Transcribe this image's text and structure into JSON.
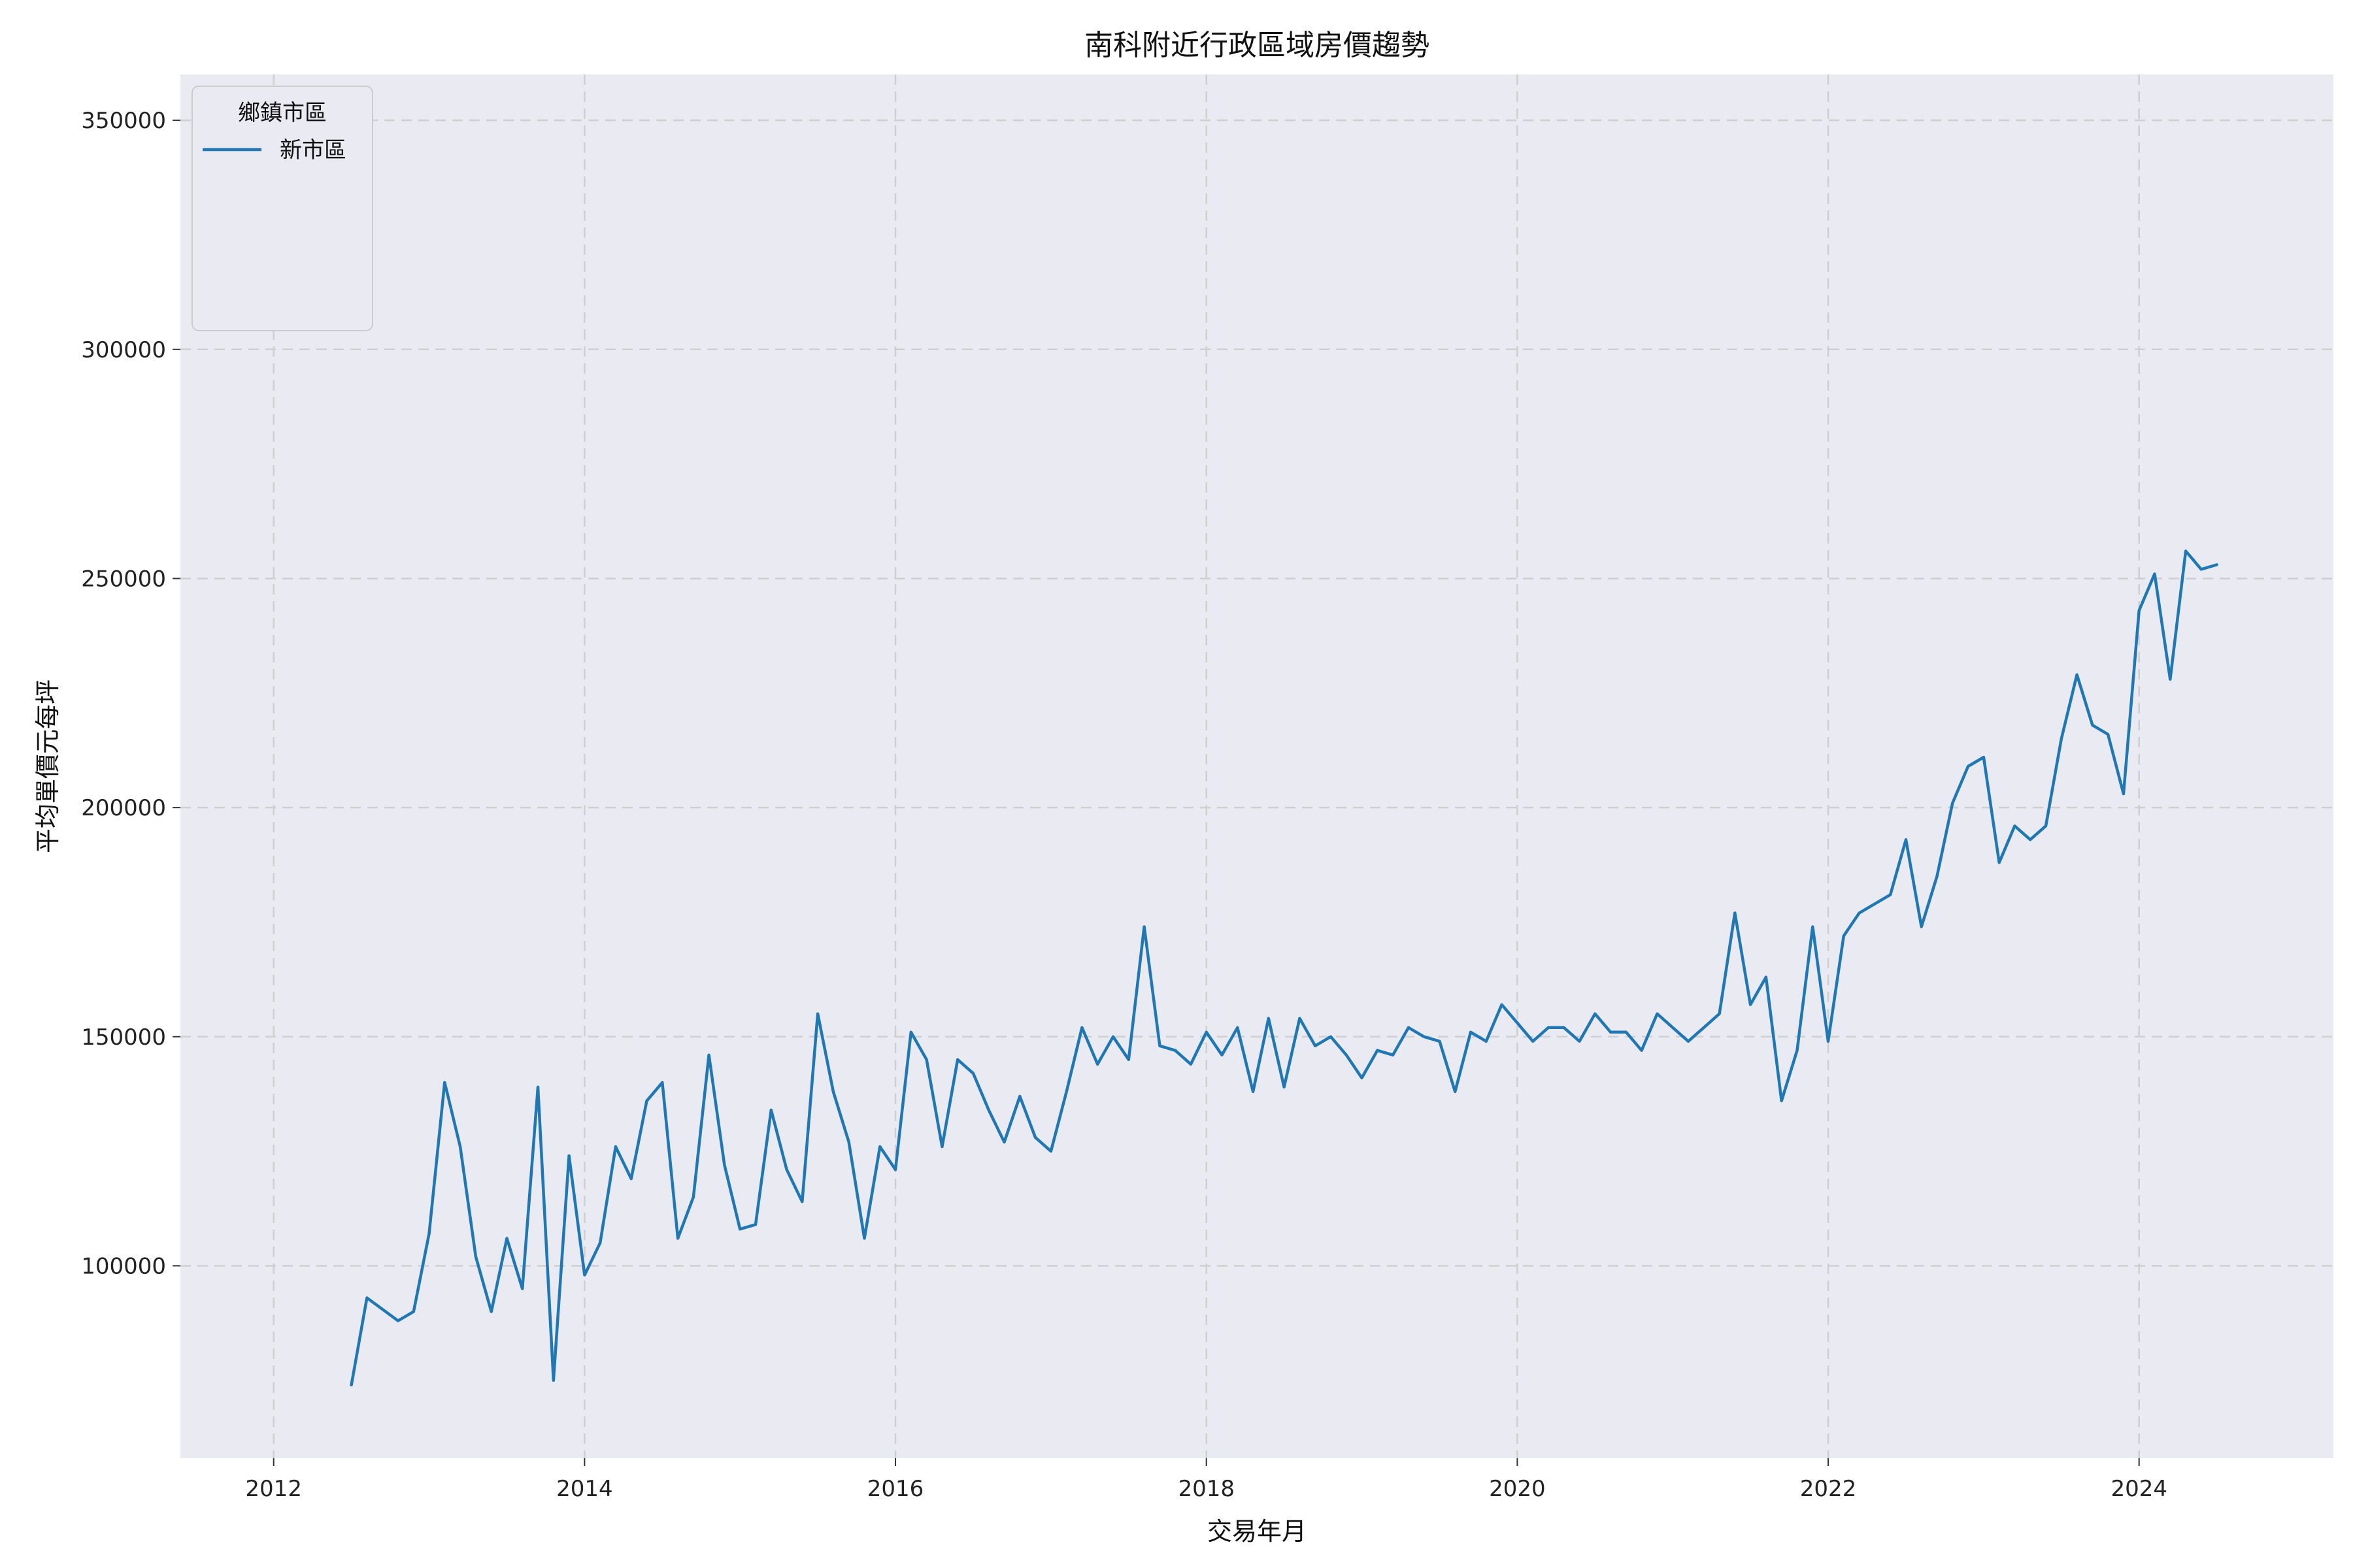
{
  "chart_data": {
    "type": "line",
    "title": "南科附近行政區域房價趨勢",
    "xlabel": "交易年月",
    "ylabel": "平均單價元每坪",
    "xlim": [
      2011.4,
      2025.25
    ],
    "ylim": [
      58000,
      360000
    ],
    "x_ticks": [
      2012,
      2014,
      2016,
      2018,
      2020,
      2022,
      2024
    ],
    "y_ticks": [
      100000,
      150000,
      200000,
      250000,
      300000,
      350000
    ],
    "grid": true,
    "legend": {
      "title": "鄉鎮市區",
      "placement": "top-left"
    },
    "background_color": "#eaeaf2",
    "series": [
      {
        "name": "新市區",
        "color": "#1f77b4",
        "width": 4.5,
        "points": [
          [
            2012.5,
            74000
          ],
          [
            2012.6,
            93000
          ],
          [
            2012.8,
            88000
          ],
          [
            2012.9,
            90000
          ],
          [
            2013.0,
            107000
          ],
          [
            2013.1,
            140000
          ],
          [
            2013.2,
            126000
          ],
          [
            2013.3,
            102000
          ],
          [
            2013.4,
            90000
          ],
          [
            2013.5,
            106000
          ],
          [
            2013.6,
            95000
          ],
          [
            2013.7,
            139000
          ],
          [
            2013.8,
            75000
          ],
          [
            2013.9,
            124000
          ],
          [
            2014.0,
            98000
          ],
          [
            2014.1,
            105000
          ],
          [
            2014.2,
            126000
          ],
          [
            2014.3,
            119000
          ],
          [
            2014.4,
            136000
          ],
          [
            2014.5,
            140000
          ],
          [
            2014.6,
            106000
          ],
          [
            2014.7,
            115000
          ],
          [
            2014.8,
            146000
          ],
          [
            2014.9,
            122000
          ],
          [
            2015.0,
            108000
          ],
          [
            2015.1,
            109000
          ],
          [
            2015.2,
            134000
          ],
          [
            2015.3,
            121000
          ],
          [
            2015.4,
            114000
          ],
          [
            2015.5,
            155000
          ],
          [
            2015.6,
            138000
          ],
          [
            2015.7,
            127000
          ],
          [
            2015.8,
            106000
          ],
          [
            2015.9,
            126000
          ],
          [
            2016.0,
            121000
          ],
          [
            2016.1,
            151000
          ],
          [
            2016.2,
            145000
          ],
          [
            2016.3,
            126000
          ],
          [
            2016.4,
            145000
          ],
          [
            2016.5,
            142000
          ],
          [
            2016.6,
            134000
          ],
          [
            2016.7,
            127000
          ],
          [
            2016.8,
            137000
          ],
          [
            2016.9,
            128000
          ],
          [
            2017.0,
            125000
          ],
          [
            2017.1,
            138000
          ],
          [
            2017.2,
            152000
          ],
          [
            2017.3,
            144000
          ],
          [
            2017.4,
            150000
          ],
          [
            2017.5,
            145000
          ],
          [
            2017.6,
            174000
          ],
          [
            2017.7,
            148000
          ],
          [
            2017.8,
            147000
          ],
          [
            2017.9,
            144000
          ],
          [
            2018.0,
            151000
          ],
          [
            2018.1,
            146000
          ],
          [
            2018.2,
            152000
          ],
          [
            2018.3,
            138000
          ],
          [
            2018.4,
            154000
          ],
          [
            2018.5,
            139000
          ],
          [
            2018.6,
            154000
          ],
          [
            2018.7,
            148000
          ],
          [
            2018.8,
            150000
          ],
          [
            2018.9,
            146000
          ],
          [
            2019.0,
            141000
          ],
          [
            2019.1,
            147000
          ],
          [
            2019.2,
            146000
          ],
          [
            2019.3,
            152000
          ],
          [
            2019.4,
            150000
          ],
          [
            2019.5,
            149000
          ],
          [
            2019.6,
            138000
          ],
          [
            2019.7,
            151000
          ],
          [
            2019.8,
            149000
          ],
          [
            2019.9,
            157000
          ],
          [
            2020.0,
            153000
          ],
          [
            2020.1,
            149000
          ],
          [
            2020.2,
            152000
          ],
          [
            2020.3,
            152000
          ],
          [
            2020.4,
            149000
          ],
          [
            2020.5,
            155000
          ],
          [
            2020.6,
            151000
          ],
          [
            2020.7,
            151000
          ],
          [
            2020.8,
            147000
          ],
          [
            2020.9,
            155000
          ],
          [
            2021.0,
            152000
          ],
          [
            2021.1,
            149000
          ],
          [
            2021.2,
            152000
          ],
          [
            2021.3,
            155000
          ],
          [
            2021.4,
            177000
          ],
          [
            2021.5,
            157000
          ],
          [
            2021.6,
            163000
          ],
          [
            2021.7,
            136000
          ],
          [
            2021.8,
            147000
          ],
          [
            2021.9,
            174000
          ],
          [
            2022.0,
            149000
          ],
          [
            2022.1,
            172000
          ],
          [
            2022.2,
            177000
          ],
          [
            2022.3,
            179000
          ],
          [
            2022.4,
            181000
          ],
          [
            2022.5,
            193000
          ],
          [
            2022.6,
            174000
          ],
          [
            2022.7,
            185000
          ],
          [
            2022.8,
            201000
          ],
          [
            2022.9,
            209000
          ],
          [
            2023.0,
            211000
          ],
          [
            2023.1,
            188000
          ],
          [
            2023.2,
            196000
          ],
          [
            2023.3,
            193000
          ],
          [
            2023.4,
            196000
          ],
          [
            2023.5,
            215000
          ],
          [
            2023.6,
            229000
          ],
          [
            2023.7,
            218000
          ],
          [
            2023.8,
            216000
          ],
          [
            2023.9,
            203000
          ],
          [
            2024.0,
            243000
          ],
          [
            2024.1,
            251000
          ],
          [
            2024.2,
            228000
          ],
          [
            2024.3,
            256000
          ],
          [
            2024.4,
            252000
          ],
          [
            2024.5,
            253000
          ]
        ]
      }
    ]
  }
}
